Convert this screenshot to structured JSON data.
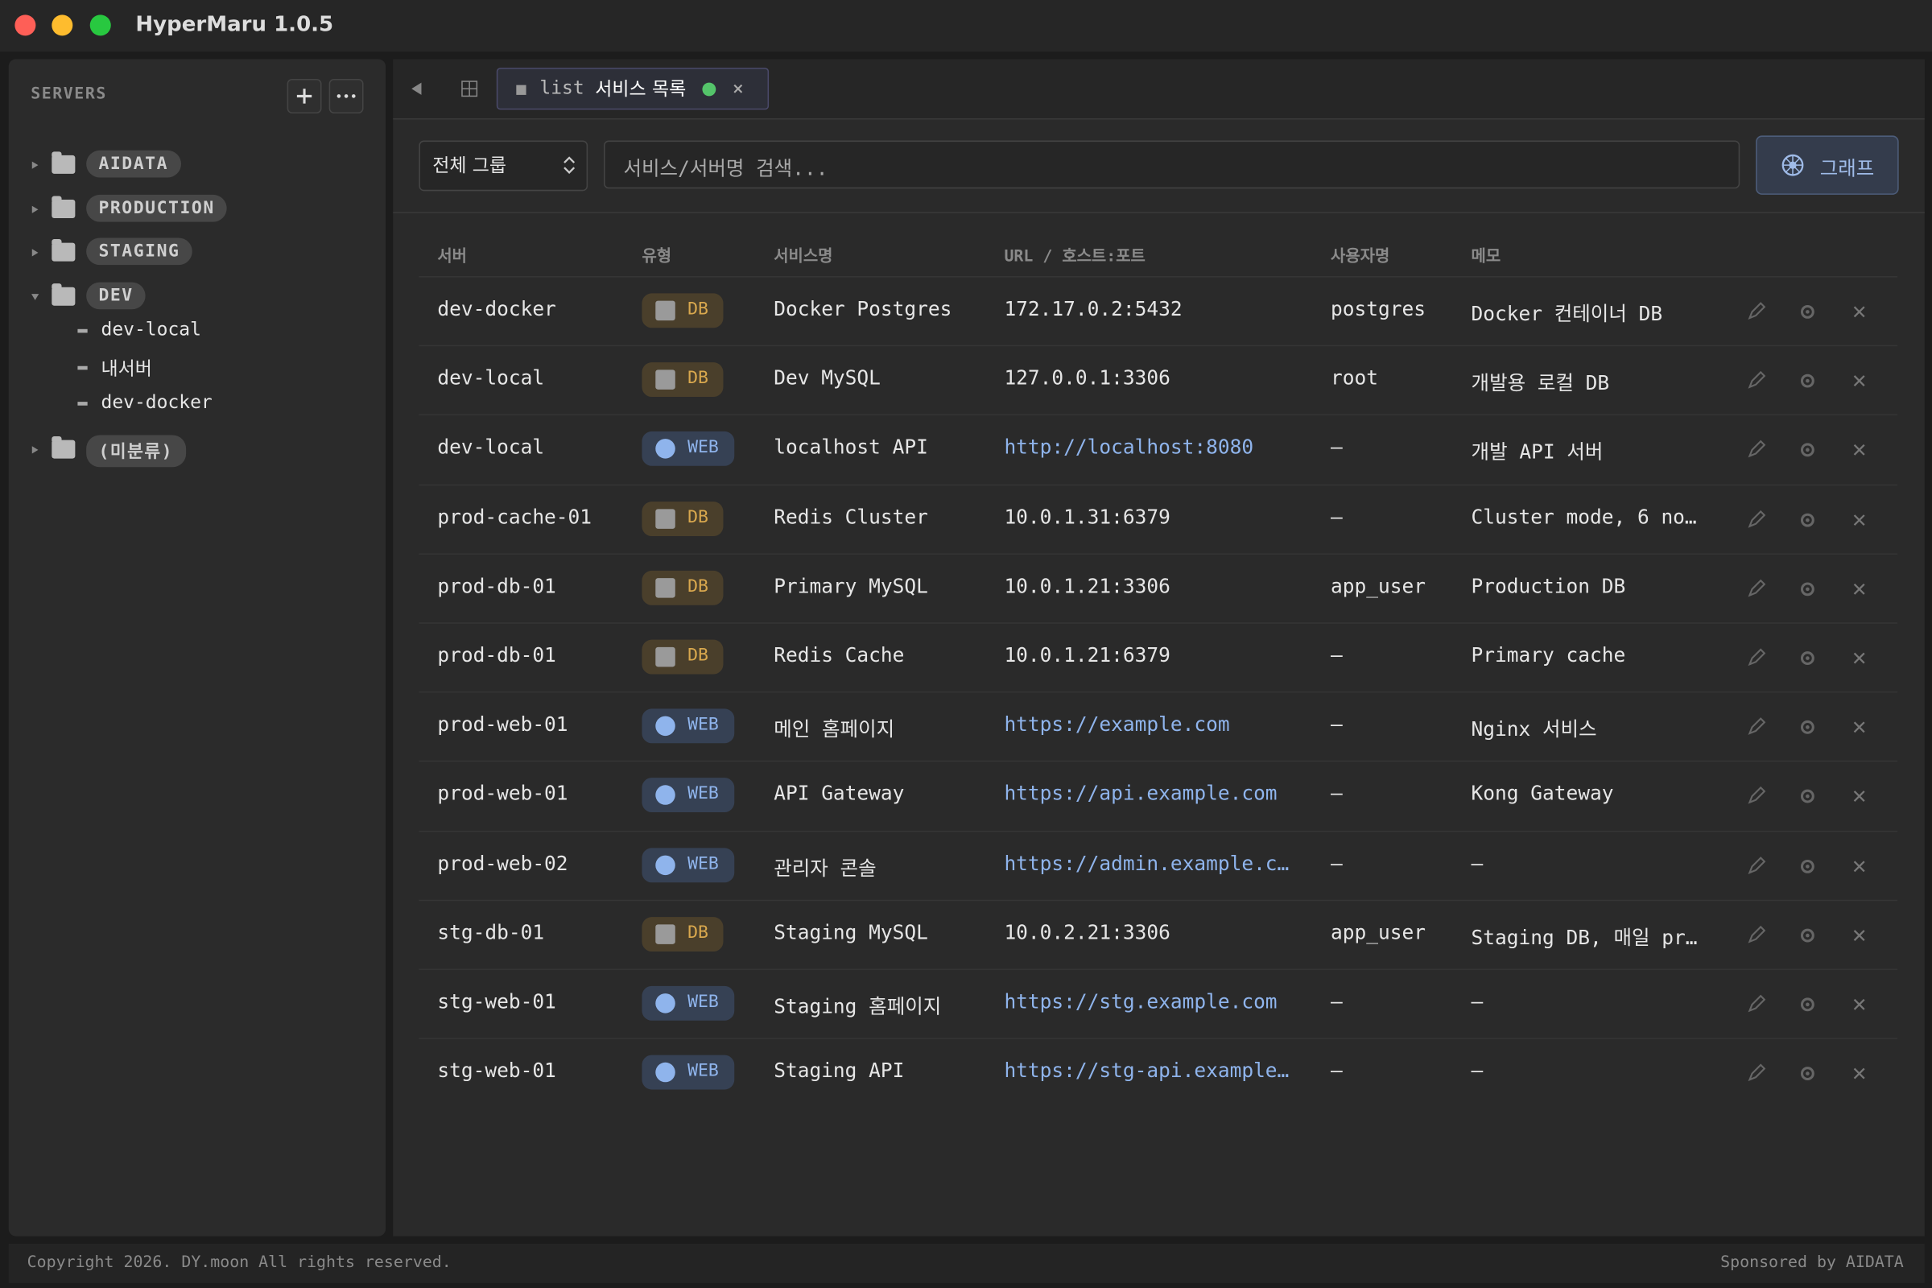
{
  "window": {
    "title": "HyperMaru 1.0.5"
  },
  "sidebar": {
    "title": "SERVERS",
    "groups": [
      {
        "name": "AIDATA",
        "expanded": false,
        "items": []
      },
      {
        "name": "PRODUCTION",
        "expanded": false,
        "items": []
      },
      {
        "name": "STAGING",
        "expanded": false,
        "items": []
      },
      {
        "name": "DEV",
        "expanded": true,
        "items": [
          "dev-local",
          "내서버",
          "dev-docker"
        ]
      },
      {
        "name": "(미분류)",
        "expanded": false,
        "items": []
      }
    ]
  },
  "tab": {
    "kind": "list",
    "label": "서비스 목록"
  },
  "toolbar": {
    "group_filter": "전체 그룹",
    "search_placeholder": "서비스/서버명 검색...",
    "graph_button": "그래프"
  },
  "table": {
    "columns": [
      "서버",
      "유형",
      "서비스명",
      "URL / 호스트:포트",
      "사용자명",
      "메모"
    ],
    "rows": [
      {
        "server": "dev-docker",
        "type": "DB",
        "type_color": "#d9a84e",
        "service": "Docker Postgres",
        "url": "172.17.0.2:5432",
        "link": false,
        "user": "postgres",
        "memo": "Docker 컨테이너 DB"
      },
      {
        "server": "dev-local",
        "type": "DB",
        "type_color": "#d9a84e",
        "service": "Dev MySQL",
        "url": "127.0.0.1:3306",
        "link": false,
        "user": "root",
        "memo": "개발용 로컬 DB"
      },
      {
        "server": "dev-local",
        "type": "WEB",
        "type_color": "#8fb4ec",
        "service": "localhost API",
        "url": "http://localhost:8080",
        "link": true,
        "user": "—",
        "memo": "개발 API 서버"
      },
      {
        "server": "prod-cache-01",
        "type": "DB",
        "type_color": "#d9a84e",
        "service": "Redis Cluster",
        "url": "10.0.1.31:6379",
        "link": false,
        "user": "—",
        "memo": "Cluster mode, 6 no…"
      },
      {
        "server": "prod-db-01",
        "type": "DB",
        "type_color": "#d9a84e",
        "service": "Primary MySQL",
        "url": "10.0.1.21:3306",
        "link": false,
        "user": "app_user",
        "memo": "Production DB"
      },
      {
        "server": "prod-db-01",
        "type": "DB",
        "type_color": "#d9a84e",
        "service": "Redis Cache",
        "url": "10.0.1.21:6379",
        "link": false,
        "user": "—",
        "memo": "Primary cache"
      },
      {
        "server": "prod-web-01",
        "type": "WEB",
        "type_color": "#8fb4ec",
        "service": "메인 홈페이지",
        "url": "https://example.com",
        "link": true,
        "user": "—",
        "memo": "Nginx 서비스"
      },
      {
        "server": "prod-web-01",
        "type": "WEB",
        "type_color": "#8fb4ec",
        "service": "API Gateway",
        "url": "https://api.example.com",
        "link": true,
        "user": "—",
        "memo": "Kong Gateway"
      },
      {
        "server": "prod-web-02",
        "type": "WEB",
        "type_color": "#8fb4ec",
        "service": "관리자 콘솔",
        "url": "https://admin.example.c…",
        "link": true,
        "user": "—",
        "memo": "—"
      },
      {
        "server": "stg-db-01",
        "type": "DB",
        "type_color": "#d9a84e",
        "service": "Staging MySQL",
        "url": "10.0.2.21:3306",
        "link": false,
        "user": "app_user",
        "memo": "Staging DB, 매일 pr…"
      },
      {
        "server": "stg-web-01",
        "type": "WEB",
        "type_color": "#8fb4ec",
        "service": "Staging 홈페이지",
        "url": "https://stg.example.com",
        "link": true,
        "user": "—",
        "memo": "—"
      },
      {
        "server": "stg-web-01",
        "type": "WEB",
        "type_color": "#8fb4ec",
        "service": "Staging API",
        "url": "https://stg-api.example…",
        "link": true,
        "user": "—",
        "memo": "—"
      }
    ]
  },
  "footer": {
    "copyright": "Copyright 2026. DY.moon All rights reserved.",
    "sponsor": "Sponsored by AIDATA"
  }
}
